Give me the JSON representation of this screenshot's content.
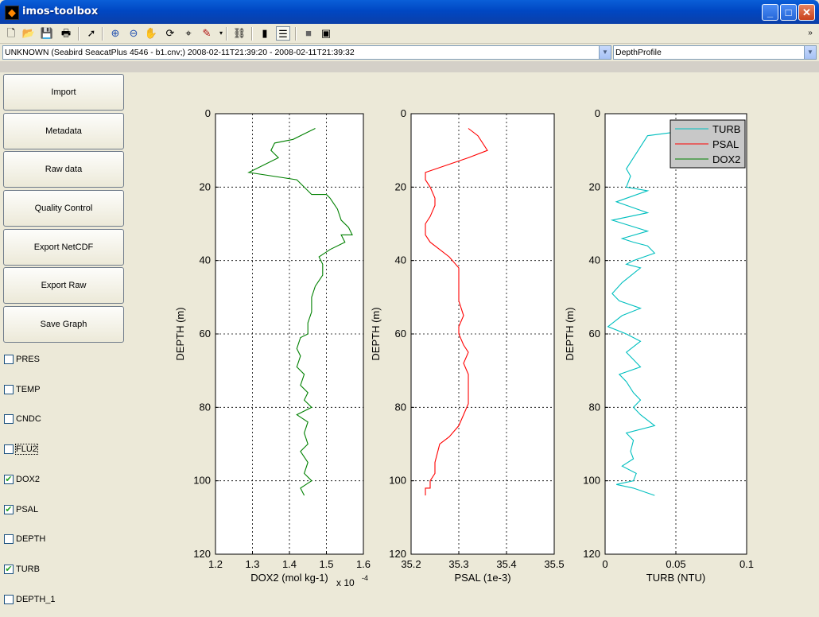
{
  "window": {
    "title": "imos-toolbox",
    "minimize": "_",
    "maximize": "□",
    "close": "✕"
  },
  "toolbar": {
    "icons": [
      "new-icon",
      "open-icon",
      "save-icon",
      "print-icon",
      "pointer-icon",
      "zoom-in-icon",
      "zoom-out-icon",
      "pan-icon",
      "rotate-icon",
      "data-cursor-icon",
      "brush-icon",
      "link-icon",
      "colorbar-icon",
      "legend-icon",
      "hide-plot-icon",
      "show-plot-icon"
    ],
    "overflow": "»"
  },
  "selectors": {
    "dataset": "UNKNOWN (Seabird SeacatPlus 4546 - b1.cnv;) 2008-02-11T21:39:20 - 2008-02-11T21:39:32",
    "graph_type": "DepthProfile"
  },
  "sidebar": {
    "buttons": [
      "Import",
      "Metadata",
      "Raw data",
      "Quality Control",
      "Export NetCDF",
      "Export Raw",
      "Save Graph"
    ],
    "variables": [
      {
        "label": "PRES",
        "checked": false
      },
      {
        "label": "TEMP",
        "checked": false
      },
      {
        "label": "CNDC",
        "checked": false
      },
      {
        "label": "FLU2",
        "checked": false
      },
      {
        "label": "DOX2",
        "checked": true
      },
      {
        "label": "PSAL",
        "checked": true
      },
      {
        "label": "DEPTH",
        "checked": false
      },
      {
        "label": "TURB",
        "checked": true
      },
      {
        "label": "DEPTH_1",
        "checked": false
      }
    ]
  },
  "chart_data": [
    {
      "type": "line",
      "ylabel": "DEPTH (m)",
      "xlabel": "DOX2 (mol kg-1)",
      "x_multiplier": "x 10",
      "x_multiplier_exp": "-4",
      "xlim": [
        1.2,
        1.6
      ],
      "ylim": [
        0,
        120
      ],
      "y_reversed": true,
      "xticks": [
        "1.2",
        "1.3",
        "1.4",
        "1.5",
        "1.6"
      ],
      "yticks": [
        "0",
        "20",
        "40",
        "60",
        "80",
        "100",
        "120"
      ],
      "grid": true,
      "color": "#008000",
      "series": [
        {
          "x": [
            1.47,
            1.41,
            1.36,
            1.35,
            1.37,
            1.29,
            1.42,
            1.46,
            1.5,
            1.51,
            1.53,
            1.54,
            1.56,
            1.57,
            1.54,
            1.55,
            1.51,
            1.48,
            1.49,
            1.49,
            1.47,
            1.46,
            1.46,
            1.45,
            1.45,
            1.43,
            1.42,
            1.43,
            1.42,
            1.44,
            1.43,
            1.45,
            1.44,
            1.46,
            1.42,
            1.45,
            1.44,
            1.45,
            1.43,
            1.45,
            1.44,
            1.46,
            1.43,
            1.44
          ],
          "y": [
            4,
            7,
            8,
            10,
            12,
            16,
            18,
            22,
            22,
            23,
            26,
            29,
            31,
            33,
            33,
            35,
            37,
            39,
            41,
            44,
            47,
            50,
            54,
            57,
            60,
            61,
            64,
            66,
            69,
            71,
            74,
            76,
            78,
            80,
            82,
            84,
            87,
            90,
            92,
            95,
            98,
            100,
            102,
            104
          ]
        }
      ]
    },
    {
      "type": "line",
      "ylabel": "DEPTH (m)",
      "xlabel": "PSAL (1e-3)",
      "xlim": [
        35.2,
        35.5
      ],
      "ylim": [
        0,
        120
      ],
      "y_reversed": true,
      "xticks": [
        "35.2",
        "35.3",
        "35.4",
        "35.5"
      ],
      "yticks": [
        "0",
        "20",
        "40",
        "60",
        "80",
        "100",
        "120"
      ],
      "grid": true,
      "color": "#ff0000",
      "series": [
        {
          "x": [
            35.32,
            35.34,
            35.36,
            35.32,
            35.23,
            35.23,
            35.24,
            35.25,
            35.25,
            35.24,
            35.23,
            35.23,
            35.24,
            35.26,
            35.28,
            35.3,
            35.3,
            35.3,
            35.31,
            35.3,
            35.3,
            35.31,
            35.32,
            35.31,
            35.32,
            35.32,
            35.32,
            35.31,
            35.3,
            35.28,
            35.26,
            35.25,
            35.25,
            35.24,
            35.24,
            35.23,
            35.23
          ],
          "y": [
            4,
            6,
            10,
            12,
            16,
            18,
            20,
            23,
            25,
            28,
            30,
            33,
            35,
            37,
            39,
            42,
            46,
            51,
            55,
            58,
            60,
            63,
            65,
            68,
            71,
            75,
            79,
            82,
            85,
            88,
            90,
            95,
            98,
            100,
            102,
            102,
            104
          ]
        }
      ]
    },
    {
      "type": "line",
      "ylabel": "DEPTH (m)",
      "xlabel": "TURB (NTU)",
      "xlim": [
        0,
        0.1
      ],
      "ylim": [
        0,
        120
      ],
      "y_reversed": true,
      "xticks": [
        "0",
        "0.05",
        "0.1"
      ],
      "yticks": [
        "0",
        "20",
        "40",
        "60",
        "80",
        "100",
        "120"
      ],
      "grid": true,
      "legend": {
        "position": "top-right",
        "entries": [
          {
            "name": "TURB",
            "color": "#00bfbf"
          },
          {
            "name": "PSAL",
            "color": "#ff0000"
          },
          {
            "name": "DOX2",
            "color": "#008000"
          }
        ]
      },
      "series": [
        {
          "name": "TURB",
          "color": "#00bfbf",
          "x": [
            0.05,
            0.03,
            0.025,
            0.02,
            0.015,
            0.018,
            0.015,
            0.03,
            0.008,
            0.03,
            0.005,
            0.03,
            0.012,
            0.02,
            0.03,
            0.035,
            0.02,
            0.015,
            0.025,
            0.012,
            0.005,
            0.01,
            0.025,
            0.012,
            0.002,
            0.015,
            0.025,
            0.015,
            0.02,
            0.025,
            0.01,
            0.015,
            0.02,
            0.025,
            0.02,
            0.025,
            0.035,
            0.015,
            0.02,
            0.018,
            0.02,
            0.012,
            0.022,
            0.02,
            0.008,
            0.02,
            0.035
          ],
          "y": [
            5,
            6,
            9,
            12,
            15,
            17,
            20,
            21,
            24,
            27,
            29,
            32,
            34,
            35,
            36,
            38,
            40,
            41,
            42,
            46,
            49,
            51,
            53,
            55,
            58,
            60,
            62,
            65,
            67,
            69,
            71,
            73,
            76,
            78,
            80,
            82,
            85,
            87,
            89,
            92,
            94,
            96,
            98,
            100,
            101,
            102,
            104
          ]
        }
      ]
    }
  ]
}
